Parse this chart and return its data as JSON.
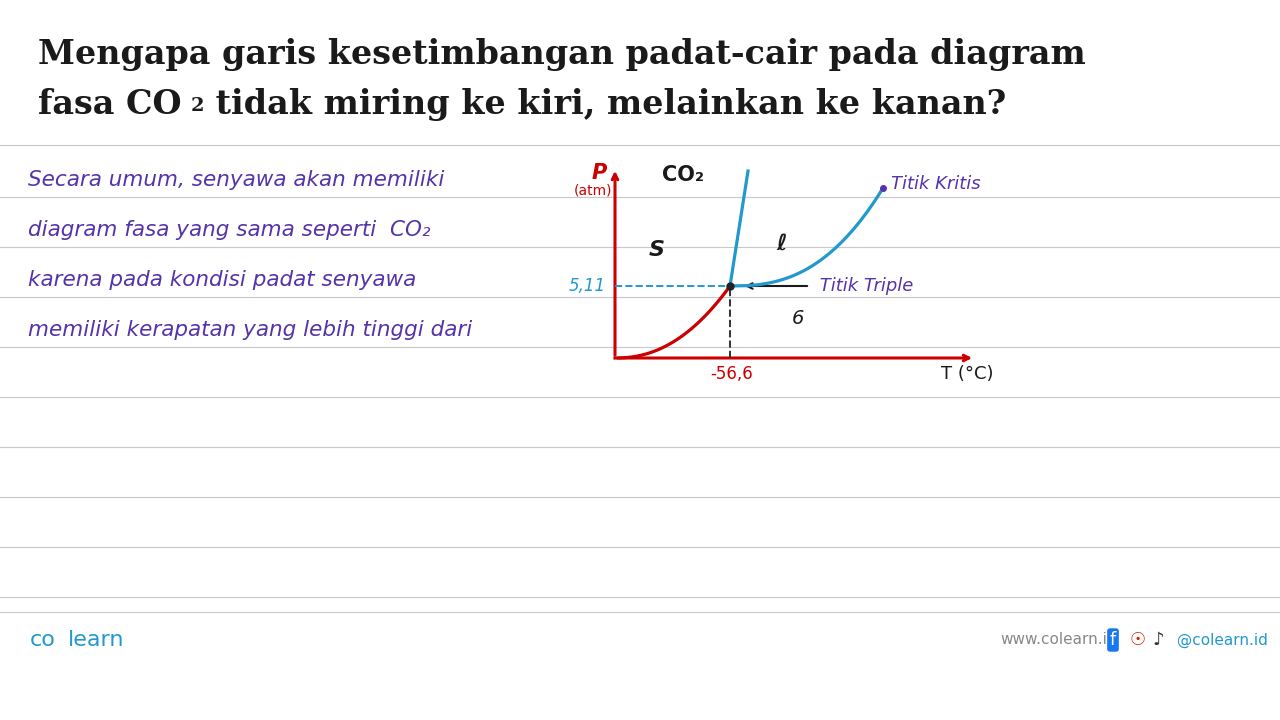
{
  "title_line1": "Mengapa garis kesetimbangan padat-cair pada diagram",
  "title_line2_a": "fasa CO",
  "title_line2_sub": "2",
  "title_line2_b": " tidak miring ke kiri, melainkan ke kanan?",
  "bg_color": "#ffffff",
  "horizontal_line_color": "#c8c8c8",
  "title_color": "#1a1a1a",
  "text_color": "#5533aa",
  "handwritten_lines": [
    "Secara umum, senyawa akan memiliki",
    "diagram fasa yang sama seperti  CO₂",
    "karena pada kondisi padat senyawa",
    "memiliki kerapatan yang lebih tinggi dari"
  ],
  "diagram_axis_color": "#cc0000",
  "diagram_curve_red": "#cc0000",
  "diagram_curve_cyan": "#2299cc",
  "diagram_text_color": "#1a1a1a",
  "diagram_label_color": "#5533aa",
  "diagram_p_label_color": "#cc0000",
  "diagram_triple_p_color": "#2299cc",
  "footer_line_color": "#cccccc",
  "footer_co_color": "#2299cc",
  "footer_learn_color": "#2299cc",
  "footer_right_color": "#888888",
  "footer_social_color": "#2299cc"
}
